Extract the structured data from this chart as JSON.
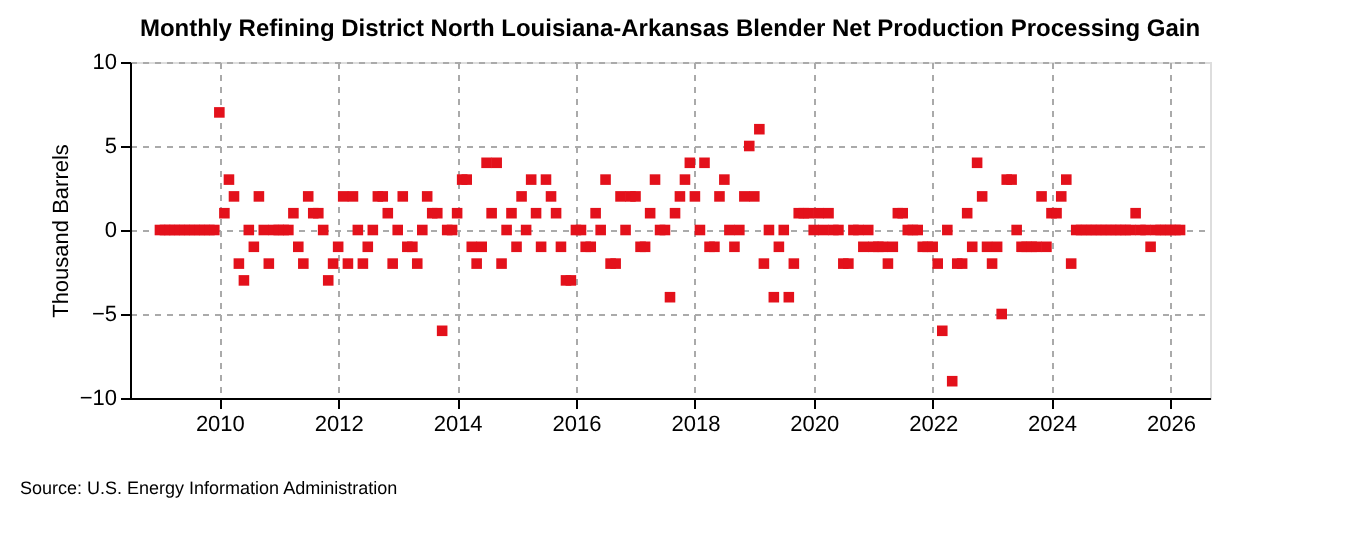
{
  "chart_data": {
    "type": "scatter",
    "title": "Monthly Refining District North Louisiana-Arkansas Blender Net Production Processing Gain",
    "ylabel": "Thousand Barrels",
    "annotations": [
      "Source: U.S. Energy Information Administration"
    ],
    "xlim": [
      "2008-07-01",
      "2026-09-01"
    ],
    "xticks": [
      "2010",
      "2012",
      "2014",
      "2016",
      "2018",
      "2020",
      "2022",
      "2024",
      "2026"
    ],
    "ylim": [
      -10,
      10
    ],
    "yticks": [
      -10,
      -5,
      0,
      5,
      10
    ],
    "grid": true,
    "marker": "square",
    "series": [
      {
        "color": "#e3111b",
        "x": [
          "2009-01",
          "2009-02",
          "2009-03",
          "2009-04",
          "2009-05",
          "2009-06",
          "2009-07",
          "2009-08",
          "2009-09",
          "2009-10",
          "2009-11",
          "2009-12",
          "2010-01",
          "2010-02",
          "2010-03",
          "2010-04",
          "2010-05",
          "2010-06",
          "2010-07",
          "2010-08",
          "2010-09",
          "2010-10",
          "2010-11",
          "2010-12",
          "2011-01",
          "2011-02",
          "2011-03",
          "2011-04",
          "2011-05",
          "2011-06",
          "2011-07",
          "2011-08",
          "2011-09",
          "2011-10",
          "2011-11",
          "2011-12",
          "2012-01",
          "2012-02",
          "2012-03",
          "2012-04",
          "2012-05",
          "2012-06",
          "2012-07",
          "2012-08",
          "2012-09",
          "2012-10",
          "2012-11",
          "2012-12",
          "2013-01",
          "2013-02",
          "2013-03",
          "2013-04",
          "2013-05",
          "2013-06",
          "2013-07",
          "2013-08",
          "2013-09",
          "2013-10",
          "2013-11",
          "2013-12",
          "2014-01",
          "2014-02",
          "2014-03",
          "2014-04",
          "2014-05",
          "2014-06",
          "2014-07",
          "2014-08",
          "2014-09",
          "2014-10",
          "2014-11",
          "2014-12",
          "2015-01",
          "2015-02",
          "2015-03",
          "2015-04",
          "2015-05",
          "2015-06",
          "2015-07",
          "2015-08",
          "2015-09",
          "2015-10",
          "2015-11",
          "2015-12",
          "2016-01",
          "2016-02",
          "2016-03",
          "2016-04",
          "2016-05",
          "2016-06",
          "2016-07",
          "2016-08",
          "2016-09",
          "2016-10",
          "2016-11",
          "2016-12",
          "2017-01",
          "2017-02",
          "2017-03",
          "2017-04",
          "2017-05",
          "2017-06",
          "2017-07",
          "2017-08",
          "2017-09",
          "2017-10",
          "2017-11",
          "2017-12",
          "2018-01",
          "2018-02",
          "2018-03",
          "2018-04",
          "2018-05",
          "2018-06",
          "2018-07",
          "2018-08",
          "2018-09",
          "2018-10",
          "2018-11",
          "2018-12",
          "2019-01",
          "2019-02",
          "2019-03",
          "2019-04",
          "2019-05",
          "2019-06",
          "2019-07",
          "2019-08",
          "2019-09",
          "2019-10",
          "2019-11",
          "2019-12",
          "2020-01",
          "2020-02",
          "2020-03",
          "2020-04",
          "2020-05",
          "2020-06",
          "2020-07",
          "2020-08",
          "2020-09",
          "2020-10",
          "2020-11",
          "2020-12",
          "2021-01",
          "2021-02",
          "2021-03",
          "2021-04",
          "2021-05",
          "2021-06",
          "2021-07",
          "2021-08",
          "2021-09",
          "2021-10",
          "2021-11",
          "2021-12",
          "2022-01",
          "2022-02",
          "2022-03",
          "2022-04",
          "2022-05",
          "2022-06",
          "2022-07",
          "2022-08",
          "2022-09",
          "2022-10",
          "2022-11",
          "2022-12",
          "2023-01",
          "2023-02",
          "2023-03",
          "2023-04",
          "2023-05",
          "2023-06",
          "2023-07",
          "2023-08",
          "2023-09",
          "2023-10",
          "2023-11",
          "2023-12",
          "2024-01",
          "2024-02",
          "2024-03",
          "2024-04",
          "2024-05",
          "2024-06",
          "2024-07",
          "2024-08",
          "2024-09",
          "2024-10",
          "2024-11",
          "2024-12",
          "2025-01",
          "2025-02",
          "2025-03",
          "2025-04",
          "2025-05",
          "2025-06",
          "2025-07",
          "2025-08",
          "2025-09",
          "2025-10",
          "2025-11",
          "2025-12",
          "2026-01",
          "2026-02",
          "2026-03"
        ],
        "values": [
          0,
          0,
          0,
          0,
          0,
          0,
          0,
          0,
          0,
          0,
          0,
          0,
          7,
          1,
          3,
          2,
          -2,
          -3,
          0,
          -1,
          2,
          0,
          -2,
          0,
          0,
          0,
          0,
          1,
          -1,
          -2,
          2,
          1,
          1,
          0,
          -3,
          -2,
          -1,
          2,
          -2,
          2,
          0,
          -2,
          -1,
          0,
          2,
          2,
          1,
          -2,
          0,
          2,
          -1,
          -1,
          -2,
          0,
          2,
          1,
          1,
          -6,
          0,
          0,
          1,
          3,
          3,
          -1,
          -2,
          -1,
          4,
          1,
          4,
          -2,
          0,
          1,
          -1,
          2,
          0,
          3,
          1,
          -1,
          3,
          2,
          1,
          -1,
          -3,
          -3,
          0,
          0,
          -1,
          -1,
          1,
          0,
          3,
          -2,
          -2,
          2,
          0,
          2,
          2,
          -1,
          -1,
          1,
          3,
          0,
          0,
          -4,
          1,
          2,
          3,
          4,
          2,
          0,
          4,
          -1,
          -1,
          2,
          3,
          0,
          -1,
          0,
          2,
          5,
          2,
          6,
          -2,
          0,
          -4,
          -1,
          0,
          -4,
          -2,
          1,
          1,
          1,
          0,
          1,
          0,
          1,
          0,
          0,
          -2,
          -2,
          0,
          0,
          -1,
          0,
          -1,
          -1,
          -1,
          -2,
          -1,
          1,
          1,
          0,
          0,
          0,
          -1,
          -1,
          -1,
          -2,
          -6,
          0,
          -9,
          -2,
          -2,
          1,
          -1,
          4,
          2,
          -1,
          -2,
          -1,
          -5,
          3,
          3,
          0,
          -1,
          -1,
          -1,
          -1,
          2,
          -1,
          1,
          1,
          2,
          3,
          -2,
          0,
          0,
          0,
          0,
          0,
          0,
          0,
          0,
          0,
          0,
          0,
          0,
          1,
          0,
          0,
          -1,
          0,
          0,
          0,
          0,
          0,
          0
        ]
      }
    ]
  }
}
